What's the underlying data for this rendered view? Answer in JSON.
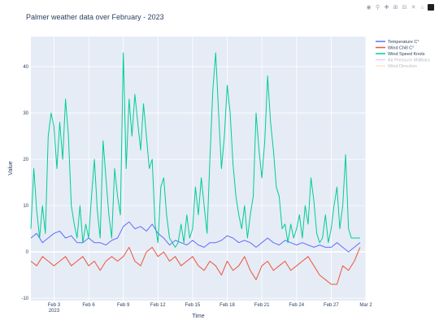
{
  "modebar": {
    "camera_icon": "camera-icon",
    "zoom_icon": "zoom-icon",
    "pan_icon": "pan-icon",
    "zoom_in_icon": "zoom-in-icon",
    "zoom_out_icon": "zoom-out-icon",
    "autoscale_icon": "autoscale-icon",
    "reset_icon": "home-icon",
    "logo_icon": "plotly-logo-icon"
  },
  "chart_data": {
    "type": "line",
    "title": "Palmer weather data over February - 2023",
    "xlabel": "Time",
    "ylabel": "Value",
    "x_range": [
      "2023-02-01",
      "2023-03-02"
    ],
    "ylim": [
      -10.5,
      46.5
    ],
    "y_ticks": [
      -10,
      0,
      10,
      20,
      30,
      40
    ],
    "x_ticks": [
      {
        "date": "2023-02-03",
        "label": "Feb 3",
        "sublabel": "2023"
      },
      {
        "date": "2023-02-06",
        "label": "Feb 6"
      },
      {
        "date": "2023-02-09",
        "label": "Feb 9"
      },
      {
        "date": "2023-02-12",
        "label": "Feb 12"
      },
      {
        "date": "2023-02-15",
        "label": "Feb 15"
      },
      {
        "date": "2023-02-18",
        "label": "Feb 18"
      },
      {
        "date": "2023-02-21",
        "label": "Feb 21"
      },
      {
        "date": "2023-02-24",
        "label": "Feb 24"
      },
      {
        "date": "2023-02-27",
        "label": "Feb 27"
      },
      {
        "date": "2023-03-02",
        "label": "Mar 2"
      }
    ],
    "grid": true,
    "legend_position": "right",
    "series": [
      {
        "name": "Temperature C°",
        "color": "#636efa",
        "visible": true,
        "points": [
          [
            "2023-02-01",
            3
          ],
          [
            "2023-02-01T12",
            4
          ],
          [
            "2023-02-02",
            2
          ],
          [
            "2023-02-02T12",
            3
          ],
          [
            "2023-02-03",
            4
          ],
          [
            "2023-02-03T12",
            4.5
          ],
          [
            "2023-02-04",
            3
          ],
          [
            "2023-02-04T12",
            3.5
          ],
          [
            "2023-02-05",
            2
          ],
          [
            "2023-02-05T12",
            2
          ],
          [
            "2023-02-06",
            3
          ],
          [
            "2023-02-06T12",
            2
          ],
          [
            "2023-02-07",
            2
          ],
          [
            "2023-02-07T12",
            1.5
          ],
          [
            "2023-02-08",
            2.5
          ],
          [
            "2023-02-08T12",
            3
          ],
          [
            "2023-02-09",
            5.5
          ],
          [
            "2023-02-09T12",
            6.5
          ],
          [
            "2023-02-10",
            5
          ],
          [
            "2023-02-10T12",
            5.5
          ],
          [
            "2023-02-11",
            4.5
          ],
          [
            "2023-02-11T12",
            6
          ],
          [
            "2023-02-12",
            4
          ],
          [
            "2023-02-12T12",
            3
          ],
          [
            "2023-02-13",
            1.5
          ],
          [
            "2023-02-13T12",
            2.5
          ],
          [
            "2023-02-14",
            2
          ],
          [
            "2023-02-14T12",
            1.5
          ],
          [
            "2023-02-15",
            2.5
          ],
          [
            "2023-02-15T12",
            1.5
          ],
          [
            "2023-02-16",
            1
          ],
          [
            "2023-02-16T12",
            2
          ],
          [
            "2023-02-17",
            2
          ],
          [
            "2023-02-17T12",
            2.5
          ],
          [
            "2023-02-18",
            3.5
          ],
          [
            "2023-02-18T12",
            3
          ],
          [
            "2023-02-19",
            2
          ],
          [
            "2023-02-19T12",
            2.5
          ],
          [
            "2023-02-20",
            2
          ],
          [
            "2023-02-20T12",
            1
          ],
          [
            "2023-02-21",
            2
          ],
          [
            "2023-02-21T12",
            3
          ],
          [
            "2023-02-22",
            2
          ],
          [
            "2023-02-22T12",
            1.5
          ],
          [
            "2023-02-23",
            2.5
          ],
          [
            "2023-02-23T12",
            2
          ],
          [
            "2023-02-24",
            1.5
          ],
          [
            "2023-02-24T12",
            2
          ],
          [
            "2023-02-25",
            1.5
          ],
          [
            "2023-02-25T12",
            1
          ],
          [
            "2023-02-26",
            1.5
          ],
          [
            "2023-02-26T12",
            1
          ],
          [
            "2023-02-27",
            1
          ],
          [
            "2023-02-27T12",
            2
          ],
          [
            "2023-02-28",
            1
          ],
          [
            "2023-02-28T12",
            0
          ],
          [
            "2023-03-01",
            1
          ],
          [
            "2023-03-01T12",
            2
          ]
        ]
      },
      {
        "name": "Wind Chill C°",
        "color": "#ef553b",
        "visible": true,
        "points": [
          [
            "2023-02-01",
            -2
          ],
          [
            "2023-02-01T12",
            -3
          ],
          [
            "2023-02-02",
            -1
          ],
          [
            "2023-02-02T12",
            -2
          ],
          [
            "2023-02-03",
            -3
          ],
          [
            "2023-02-03T12",
            -2
          ],
          [
            "2023-02-04",
            -1
          ],
          [
            "2023-02-04T12",
            -3
          ],
          [
            "2023-02-05",
            -2
          ],
          [
            "2023-02-05T12",
            -1
          ],
          [
            "2023-02-06",
            -3
          ],
          [
            "2023-02-06T12",
            -2
          ],
          [
            "2023-02-07",
            -4
          ],
          [
            "2023-02-07T12",
            -2
          ],
          [
            "2023-02-08",
            -1
          ],
          [
            "2023-02-08T12",
            -2
          ],
          [
            "2023-02-09",
            -1
          ],
          [
            "2023-02-09T12",
            1
          ],
          [
            "2023-02-10",
            -2
          ],
          [
            "2023-02-10T12",
            -3
          ],
          [
            "2023-02-11",
            0
          ],
          [
            "2023-02-11T12",
            1
          ],
          [
            "2023-02-12",
            -1
          ],
          [
            "2023-02-12T12",
            0
          ],
          [
            "2023-02-13",
            -2
          ],
          [
            "2023-02-13T12",
            -1
          ],
          [
            "2023-02-14",
            -3
          ],
          [
            "2023-02-14T12",
            -2
          ],
          [
            "2023-02-15",
            -1
          ],
          [
            "2023-02-15T12",
            -3
          ],
          [
            "2023-02-16",
            -4
          ],
          [
            "2023-02-16T12",
            -2
          ],
          [
            "2023-02-17",
            -3
          ],
          [
            "2023-02-17T12",
            -5
          ],
          [
            "2023-02-18",
            -2
          ],
          [
            "2023-02-18T12",
            -4
          ],
          [
            "2023-02-19",
            -3
          ],
          [
            "2023-02-19T12",
            -1
          ],
          [
            "2023-02-20",
            -4
          ],
          [
            "2023-02-20T12",
            -6
          ],
          [
            "2023-02-21",
            -3
          ],
          [
            "2023-02-21T12",
            -2
          ],
          [
            "2023-02-22",
            -4
          ],
          [
            "2023-02-22T12",
            -3
          ],
          [
            "2023-02-23",
            -2
          ],
          [
            "2023-02-23T12",
            -4
          ],
          [
            "2023-02-24",
            -3
          ],
          [
            "2023-02-24T12",
            -2
          ],
          [
            "2023-02-25",
            -1
          ],
          [
            "2023-02-25T12",
            -3
          ],
          [
            "2023-02-26",
            -5
          ],
          [
            "2023-02-26T12",
            -6
          ],
          [
            "2023-02-27",
            -7
          ],
          [
            "2023-02-27T12",
            -7
          ],
          [
            "2023-02-28",
            -3
          ],
          [
            "2023-02-28T12",
            -4
          ],
          [
            "2023-03-01",
            -2
          ],
          [
            "2023-03-01T12",
            1
          ]
        ]
      },
      {
        "name": "Wind Speed Knots",
        "color": "#00cc96",
        "visible": true,
        "points": [
          [
            "2023-02-01",
            5
          ],
          [
            "2023-02-01T06",
            18
          ],
          [
            "2023-02-01T12",
            9
          ],
          [
            "2023-02-01T18",
            3
          ],
          [
            "2023-02-02",
            10
          ],
          [
            "2023-02-02T06",
            4
          ],
          [
            "2023-02-02T12",
            25
          ],
          [
            "2023-02-02T18",
            30
          ],
          [
            "2023-02-03",
            27
          ],
          [
            "2023-02-03T06",
            18
          ],
          [
            "2023-02-03T12",
            28
          ],
          [
            "2023-02-03T18",
            20
          ],
          [
            "2023-02-04",
            33
          ],
          [
            "2023-02-04T06",
            25
          ],
          [
            "2023-02-04T12",
            10
          ],
          [
            "2023-02-04T18",
            6
          ],
          [
            "2023-02-05",
            3
          ],
          [
            "2023-02-05T06",
            10
          ],
          [
            "2023-02-05T12",
            2
          ],
          [
            "2023-02-05T18",
            6
          ],
          [
            "2023-02-06",
            3
          ],
          [
            "2023-02-06T06",
            12
          ],
          [
            "2023-02-06T12",
            20
          ],
          [
            "2023-02-06T18",
            9
          ],
          [
            "2023-02-07",
            3
          ],
          [
            "2023-02-07T06",
            24
          ],
          [
            "2023-02-07T12",
            16
          ],
          [
            "2023-02-07T18",
            8
          ],
          [
            "2023-02-08",
            3
          ],
          [
            "2023-02-08T06",
            18
          ],
          [
            "2023-02-08T12",
            12
          ],
          [
            "2023-02-08T18",
            8
          ],
          [
            "2023-02-09",
            43
          ],
          [
            "2023-02-09T06",
            18
          ],
          [
            "2023-02-09T12",
            33
          ],
          [
            "2023-02-09T18",
            25
          ],
          [
            "2023-02-10",
            34
          ],
          [
            "2023-02-10T06",
            28
          ],
          [
            "2023-02-10T12",
            22
          ],
          [
            "2023-02-10T18",
            32
          ],
          [
            "2023-02-11",
            25
          ],
          [
            "2023-02-11T06",
            18
          ],
          [
            "2023-02-11T12",
            20
          ],
          [
            "2023-02-11T18",
            6
          ],
          [
            "2023-02-12",
            2
          ],
          [
            "2023-02-12T06",
            14
          ],
          [
            "2023-02-12T12",
            16
          ],
          [
            "2023-02-12T18",
            8
          ],
          [
            "2023-02-13",
            3
          ],
          [
            "2023-02-13T06",
            2
          ],
          [
            "2023-02-13T12",
            1
          ],
          [
            "2023-02-13T18",
            2
          ],
          [
            "2023-02-14",
            6
          ],
          [
            "2023-02-14T06",
            2
          ],
          [
            "2023-02-14T12",
            8
          ],
          [
            "2023-02-14T18",
            3
          ],
          [
            "2023-02-15",
            5
          ],
          [
            "2023-02-15T06",
            14
          ],
          [
            "2023-02-15T12",
            8
          ],
          [
            "2023-02-15T18",
            16
          ],
          [
            "2023-02-16",
            10
          ],
          [
            "2023-02-16T06",
            4
          ],
          [
            "2023-02-16T12",
            20
          ],
          [
            "2023-02-16T18",
            35
          ],
          [
            "2023-02-17",
            43
          ],
          [
            "2023-02-17T06",
            30
          ],
          [
            "2023-02-17T12",
            18
          ],
          [
            "2023-02-17T18",
            25
          ],
          [
            "2023-02-18",
            36
          ],
          [
            "2023-02-18T06",
            30
          ],
          [
            "2023-02-18T12",
            19
          ],
          [
            "2023-02-18T18",
            12
          ],
          [
            "2023-02-19",
            8
          ],
          [
            "2023-02-19T06",
            5
          ],
          [
            "2023-02-19T12",
            10
          ],
          [
            "2023-02-19T18",
            3
          ],
          [
            "2023-02-20",
            8
          ],
          [
            "2023-02-20T06",
            12
          ],
          [
            "2023-02-20T12",
            30
          ],
          [
            "2023-02-20T18",
            22
          ],
          [
            "2023-02-21",
            16
          ],
          [
            "2023-02-21T06",
            24
          ],
          [
            "2023-02-21T12",
            38
          ],
          [
            "2023-02-21T18",
            28
          ],
          [
            "2023-02-22",
            22
          ],
          [
            "2023-02-22T06",
            14
          ],
          [
            "2023-02-22T12",
            12
          ],
          [
            "2023-02-22T18",
            5
          ],
          [
            "2023-02-23",
            6
          ],
          [
            "2023-02-23T06",
            2
          ],
          [
            "2023-02-23T12",
            6
          ],
          [
            "2023-02-23T18",
            3
          ],
          [
            "2023-02-24",
            5
          ],
          [
            "2023-02-24T06",
            8
          ],
          [
            "2023-02-24T12",
            3
          ],
          [
            "2023-02-24T18",
            10
          ],
          [
            "2023-02-25",
            6
          ],
          [
            "2023-02-25T06",
            16
          ],
          [
            "2023-02-25T12",
            11
          ],
          [
            "2023-02-25T18",
            4
          ],
          [
            "2023-02-26",
            2
          ],
          [
            "2023-02-26T06",
            3
          ],
          [
            "2023-02-26T12",
            8
          ],
          [
            "2023-02-26T18",
            2
          ],
          [
            "2023-02-27",
            5
          ],
          [
            "2023-02-27T06",
            10
          ],
          [
            "2023-02-27T12",
            14
          ],
          [
            "2023-02-27T18",
            5
          ],
          [
            "2023-02-28",
            10
          ],
          [
            "2023-02-28T06",
            21
          ],
          [
            "2023-02-28T12",
            5
          ],
          [
            "2023-02-28T18",
            3
          ],
          [
            "2023-03-01",
            3
          ],
          [
            "2023-03-01T12",
            3
          ]
        ]
      },
      {
        "name": "Air Pressure Millibars",
        "color": "#ab63fa",
        "visible": false,
        "points": []
      },
      {
        "name": "Wind Direction",
        "color": "#ffa15a",
        "visible": false,
        "points": []
      }
    ]
  }
}
